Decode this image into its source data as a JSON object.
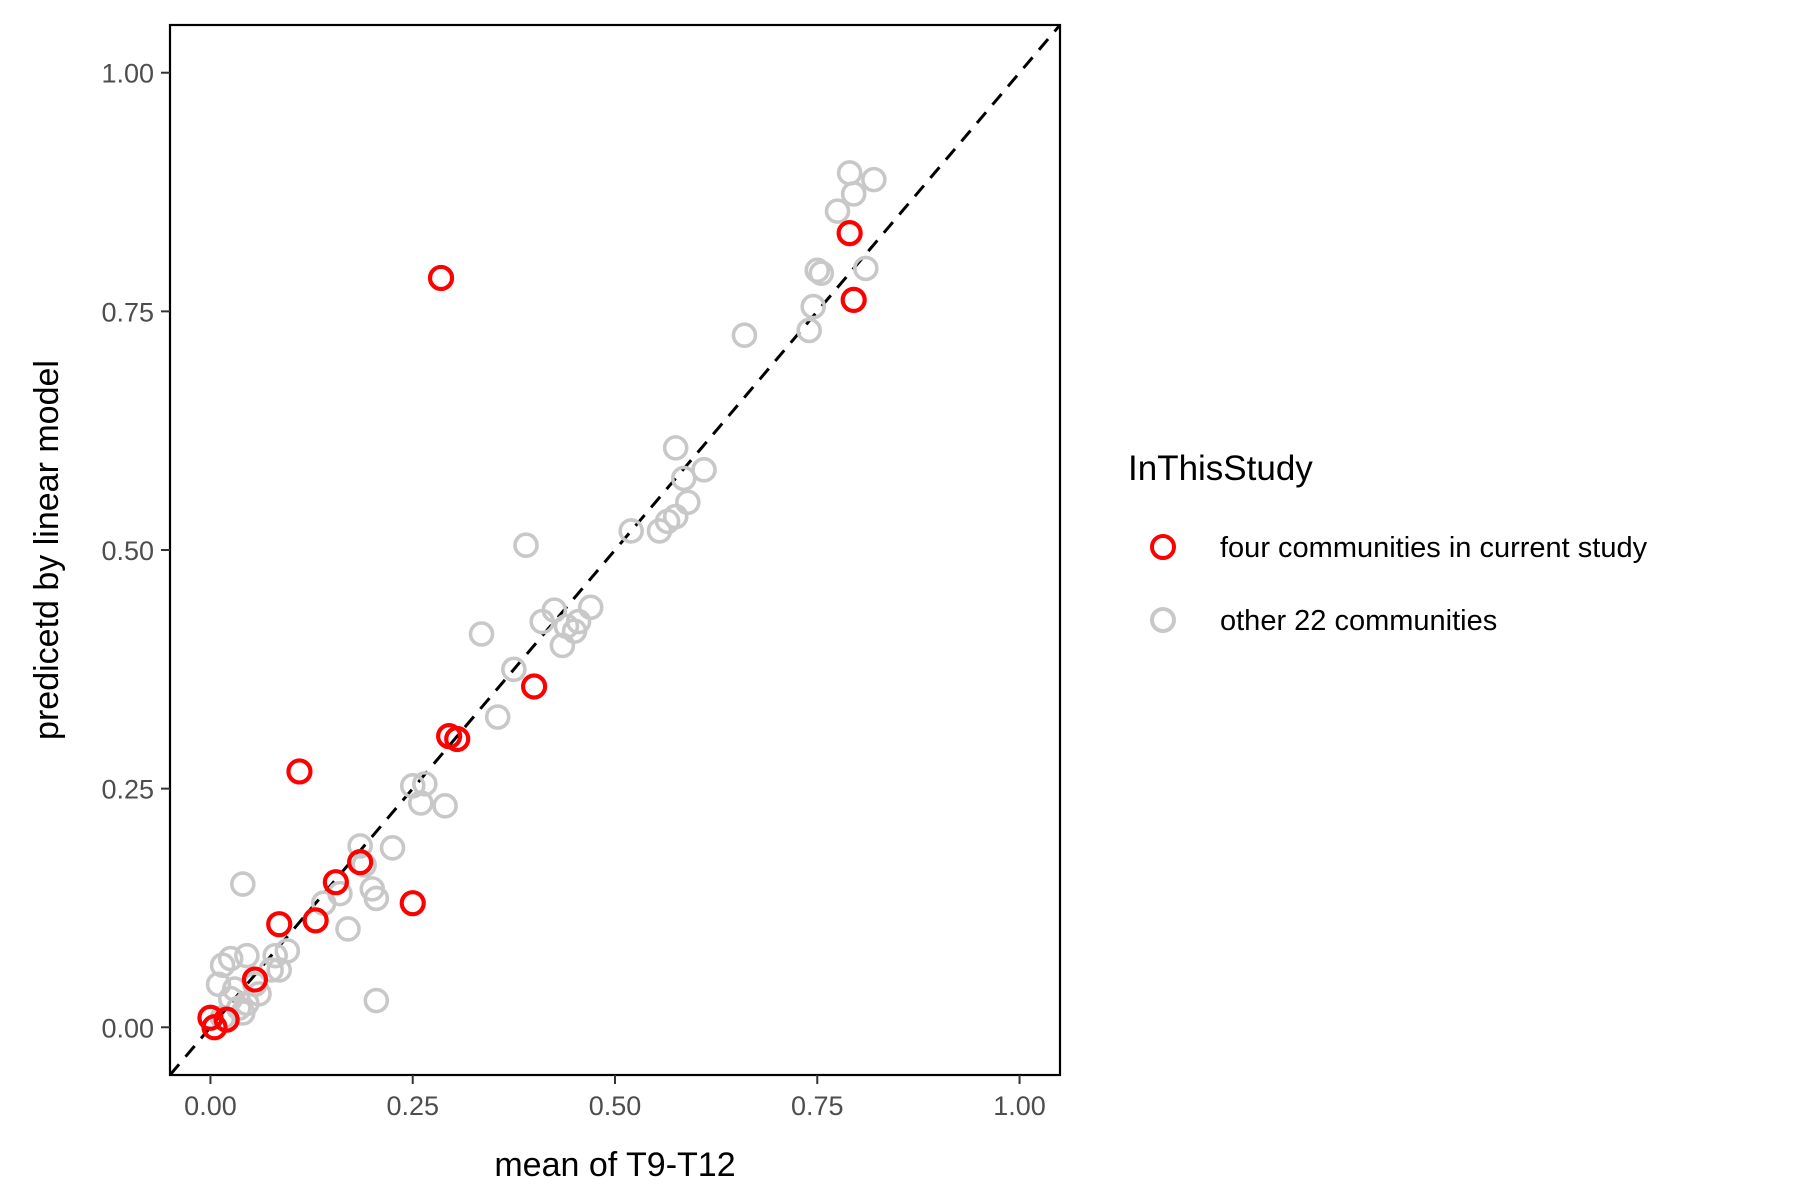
{
  "chart_data": {
    "type": "scatter",
    "xlabel": "mean of T9-T12",
    "ylabel": "predicetd by linear model",
    "xlim": [
      -0.05,
      1.05
    ],
    "ylim": [
      -0.05,
      1.05
    ],
    "x_ticks": [
      0.0,
      0.25,
      0.5,
      0.75,
      1.0
    ],
    "y_ticks": [
      0.0,
      0.25,
      0.5,
      0.75,
      1.0
    ],
    "x_tick_labels": [
      "0.00",
      "0.25",
      "0.50",
      "0.75",
      "1.00"
    ],
    "y_tick_labels": [
      "0.00",
      "0.25",
      "0.50",
      "0.75",
      "1.00"
    ],
    "grid": false,
    "reference_line": {
      "style": "dashed",
      "slope": 1,
      "intercept": 0,
      "color": "#000000"
    },
    "legend": {
      "title": "InThisStudy",
      "placement": "right",
      "entries": [
        {
          "label": "four communities in current study",
          "color": "#ff0000"
        },
        {
          "label": "other 22 communities",
          "color": "#c8c8c8"
        }
      ]
    },
    "series": [
      {
        "name": "other 22 communities",
        "color": "#c8c8c8",
        "points": [
          [
            0.79,
            0.895
          ],
          [
            0.82,
            0.888
          ],
          [
            0.795,
            0.873
          ],
          [
            0.775,
            0.855
          ],
          [
            0.75,
            0.793
          ],
          [
            0.755,
            0.79
          ],
          [
            0.81,
            0.795
          ],
          [
            0.745,
            0.755
          ],
          [
            0.74,
            0.73
          ],
          [
            0.66,
            0.725
          ],
          [
            0.575,
            0.607
          ],
          [
            0.61,
            0.584
          ],
          [
            0.585,
            0.575
          ],
          [
            0.59,
            0.55
          ],
          [
            0.52,
            0.52
          ],
          [
            0.555,
            0.52
          ],
          [
            0.565,
            0.53
          ],
          [
            0.575,
            0.535
          ],
          [
            0.39,
            0.505
          ],
          [
            0.47,
            0.44
          ],
          [
            0.425,
            0.437
          ],
          [
            0.41,
            0.425
          ],
          [
            0.455,
            0.425
          ],
          [
            0.44,
            0.42
          ],
          [
            0.45,
            0.415
          ],
          [
            0.435,
            0.4
          ],
          [
            0.335,
            0.412
          ],
          [
            0.375,
            0.375
          ],
          [
            0.355,
            0.325
          ],
          [
            0.25,
            0.253
          ],
          [
            0.265,
            0.255
          ],
          [
            0.26,
            0.235
          ],
          [
            0.29,
            0.232
          ],
          [
            0.185,
            0.19
          ],
          [
            0.225,
            0.188
          ],
          [
            0.19,
            0.17
          ],
          [
            0.16,
            0.14
          ],
          [
            0.14,
            0.13
          ],
          [
            0.2,
            0.145
          ],
          [
            0.205,
            0.135
          ],
          [
            0.17,
            0.103
          ],
          [
            0.04,
            0.15
          ],
          [
            0.205,
            0.028
          ],
          [
            0.095,
            0.08
          ],
          [
            0.08,
            0.075
          ],
          [
            0.075,
            0.06
          ],
          [
            0.085,
            0.06
          ],
          [
            0.045,
            0.075
          ],
          [
            0.025,
            0.072
          ],
          [
            0.015,
            0.065
          ],
          [
            0.01,
            0.045
          ],
          [
            0.03,
            0.04
          ],
          [
            0.025,
            0.03
          ],
          [
            0.06,
            0.035
          ],
          [
            0.045,
            0.025
          ],
          [
            0.04,
            0.015
          ],
          [
            0.035,
            0.02
          ],
          [
            0.015,
            0.01
          ],
          [
            0.055,
            0.045
          ]
        ]
      },
      {
        "name": "four communities in current study",
        "color": "#ff0000",
        "points": [
          [
            0.79,
            0.832
          ],
          [
            0.795,
            0.762
          ],
          [
            0.285,
            0.785
          ],
          [
            0.4,
            0.357
          ],
          [
            0.295,
            0.305
          ],
          [
            0.305,
            0.302
          ],
          [
            0.11,
            0.268
          ],
          [
            0.185,
            0.173
          ],
          [
            0.155,
            0.152
          ],
          [
            0.25,
            0.13
          ],
          [
            0.13,
            0.112
          ],
          [
            0.085,
            0.108
          ],
          [
            0.055,
            0.05
          ],
          [
            0.0,
            0.01
          ],
          [
            0.02,
            0.008
          ],
          [
            0.005,
            0.0
          ]
        ]
      }
    ]
  }
}
